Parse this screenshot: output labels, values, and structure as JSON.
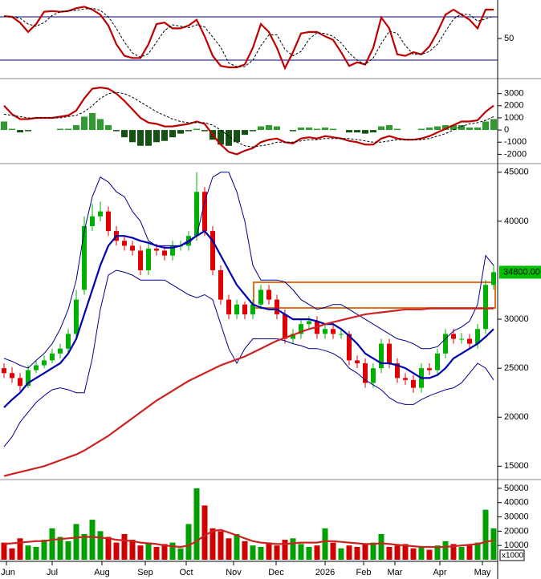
{
  "chart_data": [
    {
      "type": "line",
      "xlim": [
        -0.5,
        61.5
      ],
      "ylim": [
        0,
        100
      ],
      "yticks": [
        50
      ],
      "levels": [
        80,
        20
      ],
      "level_color": "#00006e",
      "series": [
        {
          "color": "#c00000",
          "style": "thick",
          "values": [
            81,
            80,
            72,
            59,
            70,
            87,
            88,
            87,
            88,
            92,
            94,
            90,
            83,
            68,
            42,
            26,
            23,
            23,
            42,
            70,
            72,
            64,
            64,
            68,
            76,
            53,
            26,
            12,
            10,
            10,
            14,
            37,
            70,
            59,
            37,
            9,
            31,
            57,
            59,
            59,
            53,
            48,
            31,
            12,
            17,
            14,
            37,
            79,
            64,
            28,
            26,
            31,
            28,
            39,
            59,
            83,
            90,
            83,
            76,
            64,
            90,
            90
          ]
        },
        {
          "color": "#000000",
          "style": "dashed",
          "values": [
            80,
            80,
            78,
            70,
            67,
            72,
            82,
            87,
            88,
            89,
            91,
            92,
            89,
            80,
            64,
            45,
            30,
            24,
            29,
            45,
            61,
            69,
            67,
            65,
            69,
            66,
            52,
            38,
            16,
            11,
            11,
            20,
            40,
            55,
            55,
            35,
            26,
            32,
            49,
            58,
            57,
            53,
            44,
            30,
            20,
            14,
            23,
            43,
            60,
            57,
            40,
            28,
            28,
            32,
            42,
            60,
            77,
            84,
            83,
            74,
            77,
            81
          ]
        }
      ]
    },
    {
      "type": "macd",
      "xlim": [
        -0.5,
        61.5
      ],
      "ylim": [
        -2700,
        4100
      ],
      "yticks": [
        3000,
        2000,
        1000,
        0,
        -1000,
        -2000
      ],
      "histogram": {
        "up_color": "#2f9a2f",
        "down_color": "#145214",
        "values": [
          700,
          100,
          -200,
          -100,
          0,
          0,
          0,
          100,
          100,
          400,
          1100,
          1400,
          900,
          400,
          -100,
          -600,
          -1000,
          -1300,
          -1300,
          -1000,
          -900,
          -600,
          -300,
          -100,
          100,
          -100,
          -800,
          -1200,
          -1300,
          -1000,
          -400,
          -100,
          300,
          400,
          300,
          0,
          -100,
          200,
          200,
          100,
          200,
          100,
          0,
          -200,
          -200,
          -300,
          -200,
          300,
          400,
          100,
          0,
          0,
          100,
          200,
          300,
          400,
          400,
          400,
          200,
          200,
          700,
          900
        ]
      },
      "series": [
        {
          "color": "#c00000",
          "style": "thick",
          "values": [
            2000,
            1300,
            900,
            900,
            1000,
            1000,
            1000,
            1100,
            1200,
            1600,
            2600,
            3400,
            3500,
            3400,
            3000,
            2400,
            1700,
            1000,
            600,
            500,
            300,
            300,
            400,
            500,
            700,
            500,
            -400,
            -1200,
            -1800,
            -2000,
            -1700,
            -1500,
            -1000,
            -800,
            -700,
            -1000,
            -1100,
            -700,
            -600,
            -700,
            -500,
            -600,
            -700,
            -900,
            -1000,
            -1200,
            -1200,
            -700,
            -500,
            -700,
            -800,
            -800,
            -700,
            -500,
            -200,
            100,
            400,
            700,
            700,
            800,
            1500,
            2000
          ]
        },
        {
          "color": "#000000",
          "style": "dashed",
          "values": [
            1300,
            1200,
            1100,
            1000,
            1000,
            1000,
            1000,
            1000,
            1100,
            1200,
            1500,
            2000,
            2600,
            3000,
            3100,
            3000,
            2700,
            2300,
            1900,
            1500,
            1200,
            900,
            700,
            600,
            600,
            600,
            400,
            0,
            -500,
            -1000,
            -1300,
            -1400,
            -1300,
            -1200,
            -1000,
            -1000,
            -1000,
            -900,
            -800,
            -800,
            -700,
            -700,
            -700,
            -700,
            -800,
            -900,
            -1000,
            -1000,
            -900,
            -800,
            -800,
            -800,
            -800,
            -700,
            -500,
            -300,
            0,
            300,
            500,
            600,
            800,
            1100
          ]
        }
      ]
    },
    {
      "type": "candlestick",
      "xlim": [
        -0.5,
        61.5
      ],
      "ylim": [
        13800,
        45800
      ],
      "yticks": [
        45000,
        40000,
        30000,
        25000,
        20000,
        15000
      ],
      "up_color": "#00b000",
      "down_color": "#e00000",
      "open": [
        25000,
        24500,
        24000,
        23200,
        24800,
        25300,
        25800,
        26500,
        27000,
        28500,
        33000,
        39500,
        40500,
        41000,
        39000,
        38000,
        37500,
        37000,
        35000,
        37200,
        37000,
        36500,
        37500,
        37500,
        38500,
        43000,
        39000,
        35000,
        32000,
        30500,
        31500,
        30500,
        31500,
        33000,
        32000,
        30500,
        28000,
        28500,
        29500,
        29800,
        28500,
        29000,
        28500,
        28500,
        25800,
        25500,
        23500,
        25000,
        27500,
        25500,
        24000,
        23800,
        23000,
        25000,
        24800,
        26500,
        28500,
        28000,
        28000,
        27500,
        29000,
        33500
      ],
      "high": [
        25500,
        25100,
        24500,
        25300,
        25800,
        26300,
        27000,
        27500,
        29000,
        33000,
        40500,
        41800,
        42000,
        41500,
        39500,
        38500,
        38000,
        37500,
        37800,
        37700,
        37500,
        38000,
        38000,
        39000,
        45000,
        43500,
        39500,
        35500,
        32500,
        32000,
        31800,
        32000,
        33500,
        33500,
        32500,
        31000,
        29000,
        30000,
        30300,
        30300,
        29500,
        29500,
        29000,
        28800,
        26300,
        26000,
        25500,
        28000,
        28000,
        26000,
        24500,
        24300,
        25500,
        25500,
        27000,
        29000,
        29000,
        28600,
        28500,
        29500,
        34000,
        35500
      ],
      "low": [
        24000,
        23500,
        22700,
        23000,
        24500,
        25000,
        25500,
        26000,
        26500,
        28000,
        32500,
        39000,
        40000,
        38500,
        37500,
        37000,
        36500,
        34500,
        34500,
        36500,
        36000,
        36000,
        37000,
        37000,
        38000,
        38500,
        34500,
        31500,
        30000,
        30000,
        30000,
        30000,
        31000,
        31500,
        30000,
        27500,
        27500,
        28000,
        29000,
        28000,
        28000,
        28000,
        28000,
        25300,
        25000,
        23000,
        23000,
        24500,
        25000,
        23500,
        23300,
        22500,
        22500,
        24300,
        24300,
        26000,
        27500,
        27500,
        27000,
        27000,
        28500,
        33000
      ],
      "close": [
        24500,
        24000,
        23200,
        24800,
        25300,
        25800,
        26500,
        27000,
        28500,
        32000,
        39500,
        40500,
        41000,
        39000,
        38000,
        37500,
        37000,
        35000,
        37200,
        37000,
        36500,
        37500,
        37500,
        38500,
        43000,
        39000,
        35000,
        32000,
        30500,
        31500,
        30500,
        31500,
        33000,
        32000,
        30500,
        28000,
        28500,
        29500,
        29800,
        28500,
        29000,
        28500,
        28500,
        25800,
        25500,
        23500,
        25000,
        27500,
        25500,
        24000,
        23800,
        23000,
        25000,
        24800,
        26500,
        28500,
        28000,
        28000,
        27500,
        29000,
        33500,
        34800
      ],
      "series": [
        {
          "color": "#00008b",
          "style": "thin",
          "values": [
            26000,
            25700,
            25300,
            25000,
            25800,
            26500,
            27500,
            29000,
            31000,
            34000,
            39000,
            42500,
            44500,
            44000,
            43000,
            42500,
            41000,
            40000,
            38000,
            37500,
            37500,
            37500,
            37500,
            37800,
            38500,
            42000,
            44500,
            45000,
            45000,
            43000,
            40000,
            35500,
            34000,
            34000,
            34000,
            33800,
            33000,
            32000,
            31500,
            31000,
            31200,
            31500,
            31500,
            31000,
            30500,
            30000,
            29500,
            29000,
            28500,
            28000,
            27800,
            27500,
            27000,
            27000,
            27200,
            28000,
            28800,
            29200,
            29800,
            31500,
            36500,
            35500
          ]
        },
        {
          "color": "#00008b",
          "style": "thin",
          "values": [
            17000,
            18000,
            19500,
            20500,
            21500,
            22200,
            22800,
            23000,
            22800,
            22500,
            22500,
            26000,
            31000,
            34500,
            35000,
            34800,
            34500,
            34000,
            34000,
            34000,
            34000,
            33500,
            33000,
            32500,
            32200,
            32500,
            32000,
            29500,
            27000,
            25500,
            27000,
            28000,
            28000,
            28000,
            28000,
            27800,
            27500,
            27300,
            27000,
            27000,
            26800,
            26500,
            26000,
            25000,
            24500,
            23800,
            23300,
            22800,
            22000,
            21500,
            21300,
            21300,
            21800,
            22200,
            22500,
            22800,
            23000,
            23500,
            24500,
            25500,
            25000,
            23800
          ]
        },
        {
          "color": "#0000b0",
          "style": "thick",
          "values": [
            21000,
            21800,
            22500,
            23500,
            24000,
            24500,
            25000,
            25500,
            26500,
            28000,
            30500,
            33000,
            35500,
            37500,
            38500,
            38500,
            38300,
            38000,
            37800,
            37500,
            37300,
            37300,
            37500,
            38000,
            38500,
            39000,
            38000,
            36500,
            35000,
            33500,
            32500,
            31500,
            31200,
            31000,
            31000,
            30500,
            30000,
            30000,
            30000,
            29800,
            29500,
            29500,
            29000,
            28300,
            27500,
            26500,
            26000,
            25500,
            25500,
            25300,
            25000,
            24500,
            24000,
            24000,
            24300,
            25000,
            26000,
            26500,
            27000,
            27500,
            28200,
            29000
          ]
        },
        {
          "color": "#cc2222",
          "style": "thick",
          "values": [
            14000,
            14200,
            14400,
            14600,
            14800,
            15000,
            15300,
            15600,
            15900,
            16200,
            16600,
            17100,
            17600,
            18100,
            18700,
            19300,
            19900,
            20500,
            21100,
            21700,
            22200,
            22700,
            23200,
            23700,
            24100,
            24500,
            24900,
            25300,
            25600,
            25900,
            26200,
            26600,
            27000,
            27400,
            27800,
            28100,
            28400,
            28700,
            29000,
            29200,
            29500,
            29700,
            29900,
            30100,
            30300,
            30500,
            30600,
            30700,
            30800,
            30900,
            31000,
            31000,
            31000,
            31100,
            31100,
            31100,
            31100,
            31100,
            31100,
            31100,
            31100,
            31100
          ]
        }
      ],
      "last_label": {
        "value": 34800,
        "label": "34800.00"
      },
      "last_label_color": "#00c000"
    },
    {
      "type": "bar",
      "xlim": [
        -0.5,
        61.5
      ],
      "ylim": [
        0,
        55000
      ],
      "yticks": [
        50000,
        40000,
        30000,
        20000,
        10000
      ],
      "unit_label": "x1000",
      "x": [
        0,
        1,
        2,
        3,
        4,
        5,
        6,
        7,
        8,
        9,
        10,
        11,
        12,
        13,
        14,
        15,
        16,
        17,
        18,
        19,
        20,
        21,
        22,
        23,
        24,
        25,
        26,
        27,
        28,
        29,
        30,
        31,
        32,
        33,
        34,
        35,
        36,
        37,
        38,
        39,
        40,
        41,
        42,
        43,
        44,
        45,
        46,
        47,
        48,
        49,
        50,
        51,
        52,
        53,
        54,
        55,
        56,
        57,
        58,
        59,
        60,
        61
      ],
      "xticks": [
        {
          "value": 0.3,
          "label": "Jun"
        },
        {
          "value": 6,
          "label": "Jul"
        },
        {
          "value": 12.2,
          "label": "Aug"
        },
        {
          "value": 17.6,
          "label": "Sep"
        },
        {
          "value": 22.7,
          "label": "Oct"
        },
        {
          "value": 28.6,
          "label": "Nov"
        },
        {
          "value": 33.9,
          "label": "Dec"
        },
        {
          "value": 40,
          "label": "2026"
        },
        {
          "value": 44.8,
          "label": "Feb"
        },
        {
          "value": 48.7,
          "label": "Mar"
        },
        {
          "value": 54.3,
          "label": "Apr"
        },
        {
          "value": 59.6,
          "label": "May"
        }
      ],
      "up_color": "#00a000",
      "down_color": "#d00000",
      "values": [
        12000,
        8000,
        15000,
        10000,
        9000,
        14000,
        22000,
        16000,
        13000,
        25000,
        18000,
        28000,
        20000,
        16000,
        12000,
        18000,
        14000,
        10000,
        12000,
        9000,
        11000,
        12000,
        8000,
        25000,
        50000,
        38000,
        22000,
        20000,
        15000,
        18000,
        13000,
        10000,
        9000,
        12000,
        10000,
        14000,
        15000,
        11000,
        9000,
        10000,
        22000,
        12000,
        8000,
        10000,
        9000,
        11000,
        12000,
        18000,
        9000,
        10000,
        11000,
        8000,
        9000,
        7000,
        10000,
        13000,
        11000,
        9000,
        10000,
        12000,
        35000,
        22000
      ],
      "series": [
        {
          "color": "#cc2222",
          "style": "thick",
          "values": [
            11000,
            11500,
            12000,
            12500,
            13000,
            13000,
            14000,
            14500,
            15000,
            15500,
            16000,
            16000,
            15500,
            15000,
            14000,
            13500,
            13000,
            12000,
            11500,
            11000,
            10000,
            9500,
            9000,
            10000,
            13000,
            17000,
            20000,
            21000,
            19000,
            17000,
            15000,
            13000,
            12000,
            11500,
            11000,
            11000,
            11500,
            12000,
            12000,
            12000,
            13000,
            13000,
            12500,
            12000,
            11500,
            11000,
            11000,
            11500,
            11000,
            10500,
            10000,
            9500,
            9000,
            9000,
            8800,
            9000,
            9500,
            10000,
            10500,
            11000,
            12500,
            13500
          ]
        }
      ]
    }
  ]
}
